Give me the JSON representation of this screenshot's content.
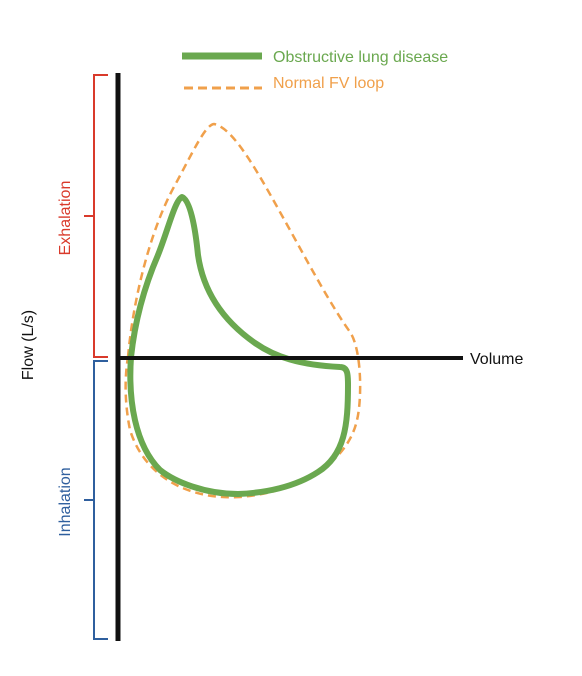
{
  "legend": {
    "items": [
      {
        "label": "Obstructive lung disease",
        "color": "#6aa84f",
        "style": "solid"
      },
      {
        "label": "Normal FV loop",
        "color": "#f0a04b",
        "style": "dashed"
      }
    ]
  },
  "axes": {
    "y_label": "Flow (L/s)",
    "x_label": "Volume"
  },
  "brackets": {
    "exhalation": {
      "label": "Exhalation",
      "color": "#d93a2b"
    },
    "inhalation": {
      "label": "Inhalation",
      "color": "#2f5f9e"
    }
  },
  "colors": {
    "axis": "#111111",
    "obstructive": "#6aa84f",
    "normal": "#f0a04b",
    "exhalation": "#d93a2b",
    "inhalation": "#2f5f9e"
  }
}
